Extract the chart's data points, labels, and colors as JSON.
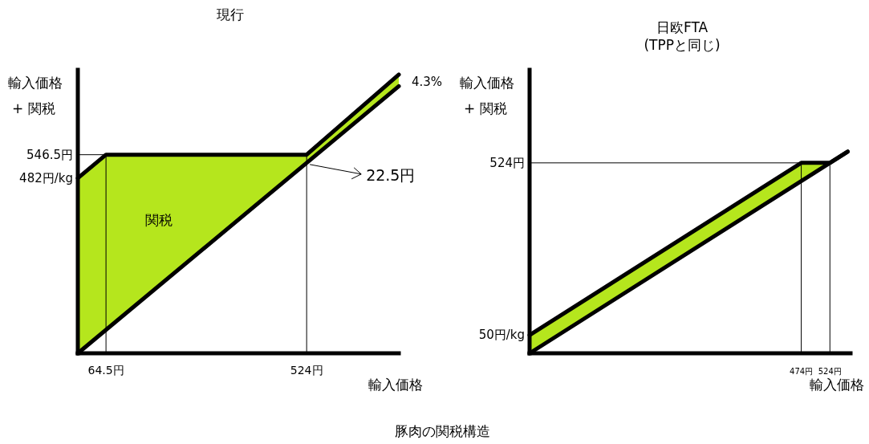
{
  "chart_data": [
    {
      "type": "line",
      "title": "現行",
      "xlabel": "輸入価格",
      "ylabel": "輸入価格\n+ 関税",
      "xlim": [
        0,
        735
      ],
      "ylim": [
        0,
        780
      ],
      "xticks": [
        {
          "value": 64.5,
          "label": "64.5円"
        },
        {
          "value": 524,
          "label": "524円"
        }
      ],
      "yticks": [
        {
          "value": 482,
          "label": "482円/kg"
        },
        {
          "value": 546.5,
          "label": "546.5円"
        }
      ],
      "series": [
        {
          "type": "area",
          "color": "#b5e61d"
        },
        {
          "color": "#000000",
          "x": [
            0,
            735
          ],
          "values": [
            0,
            735
          ]
        },
        {
          "color": "#000000",
          "x": [
            0,
            64.5,
            524,
            735
          ],
          "values": [
            482,
            546.5,
            546.5,
            767
          ],
          "lower": [
            0,
            64.5,
            524,
            735
          ],
          "upper": [
            482,
            546.5,
            546.5,
            767
          ]
        }
      ],
      "ref_lines": [
        {
          "axis": "x",
          "value": 64.5
        },
        {
          "axis": "x",
          "value": 524
        },
        {
          "axis": "y",
          "value": 546.5
        }
      ],
      "annotations": [
        "4.3%",
        "関税",
        {
          "text": "22.5円",
          "x": 524,
          "y": 524
        },
        "豚肉の関税構造"
      ]
    },
    {
      "type": "line",
      "title": "日欧FTA\n(TPPと同じ)",
      "xlabel": "輸入価格",
      "ylabel": "輸入価格\n+ 関税",
      "xlim": [
        0,
        560
      ],
      "ylim": [
        0,
        780
      ],
      "xticks": [
        {
          "value": 474,
          "label": "474円"
        },
        {
          "value": 524,
          "label": "524円"
        }
      ],
      "yticks": [
        {
          "value": 50,
          "label": "50円/kg"
        },
        {
          "value": 524,
          "label": "524円"
        }
      ],
      "series": [
        {
          "type": "area",
          "color": "#b5e61d"
        },
        {
          "color": "#000000",
          "x": [
            0,
            555
          ],
          "values": [
            0,
            555
          ]
        },
        {
          "color": "#000000",
          "x": [
            0,
            474,
            524,
            555
          ],
          "values": [
            50,
            524,
            524,
            555
          ],
          "lower": [
            0,
            474,
            524,
            555
          ],
          "upper": [
            50,
            524,
            524,
            555
          ]
        }
      ],
      "ref_lines": [
        {
          "axis": "x",
          "value": 474
        },
        {
          "axis": "x",
          "value": 524
        },
        {
          "axis": "y",
          "value": 524
        }
      ]
    }
  ]
}
